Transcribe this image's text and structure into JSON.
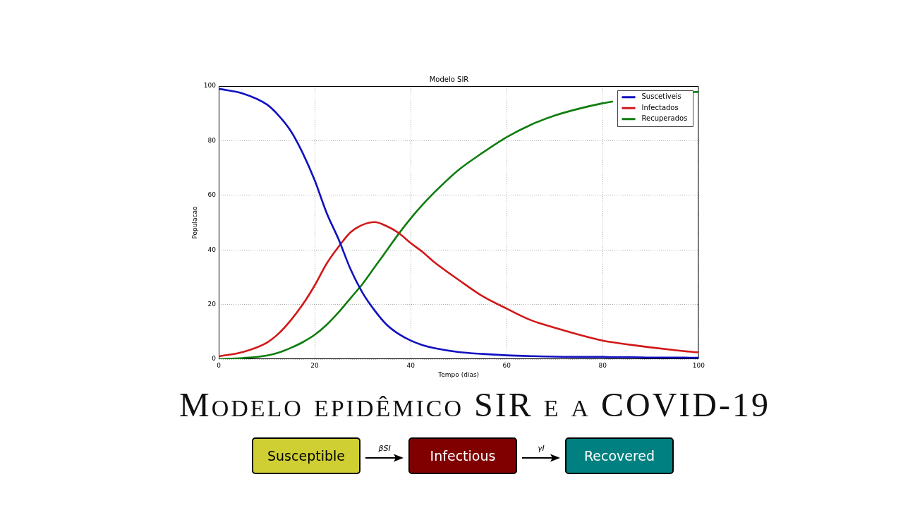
{
  "chart_data": [
    {
      "type": "line",
      "title": "Modelo SIR",
      "xlabel": "Tempo (dias)",
      "ylabel": "Populacao",
      "x": [
        0,
        5,
        10,
        12.5,
        15,
        17.5,
        20,
        22.5,
        25,
        27.5,
        30,
        32.5,
        35,
        37.5,
        40,
        42.5,
        45,
        50,
        55,
        60,
        65,
        70,
        75,
        80,
        82,
        86,
        90,
        95,
        99,
        100
      ],
      "series": [
        {
          "name": "Suscetiveis",
          "color": "#1010c0",
          "values": [
            99,
            97.3,
            93.3,
            89.2,
            83.6,
            75.5,
            65.5,
            53.5,
            43.8,
            32.8,
            24.2,
            17.8,
            12.6,
            9.2,
            6.8,
            5.1,
            4,
            2.6,
            1.9,
            1.4,
            1.1,
            0.9,
            0.8,
            0.8,
            0.7,
            0.7,
            0.6,
            0.6,
            0.5,
            0.5
          ]
        },
        {
          "name": "Infectados",
          "color": "#d21818",
          "values": [
            1,
            2.6,
            6,
            9.4,
            14.2,
            20,
            27,
            35,
            41.2,
            46.5,
            49.2,
            50.2,
            48.7,
            46.2,
            42.5,
            39.2,
            35.4,
            29,
            23,
            18.5,
            14.3,
            11.5,
            9,
            6.8,
            6.2,
            5.2,
            4.3,
            3.3,
            2.6,
            2.5
          ]
        },
        {
          "name": "Recuperados",
          "color": "#0f7d0f",
          "values": [
            0,
            0.4,
            1.3,
            2.4,
            4.1,
            6.2,
            8.9,
            12.6,
            17.2,
            22.4,
            27.6,
            33.7,
            39.8,
            45.9,
            51.5,
            56.6,
            61.2,
            69.3,
            75.6,
            81.3,
            85.8,
            89.2,
            91.7,
            93.7,
            94.3,
            null,
            null,
            null,
            97.8,
            97.9
          ]
        }
      ],
      "xlim": [
        0,
        100
      ],
      "ylim": [
        0,
        100
      ],
      "xticks": [
        0,
        20,
        40,
        60,
        80,
        100
      ],
      "yticks": [
        0,
        20,
        40,
        60,
        80,
        100
      ],
      "grid": true,
      "legend": "top right"
    },
    {
      "type": "other",
      "title": "Modelo epidêmico SIR e a COVID-19",
      "annotations": [
        "Susceptible",
        "βSI",
        "Infectious",
        "γI",
        "Recovered"
      ]
    }
  ]
}
